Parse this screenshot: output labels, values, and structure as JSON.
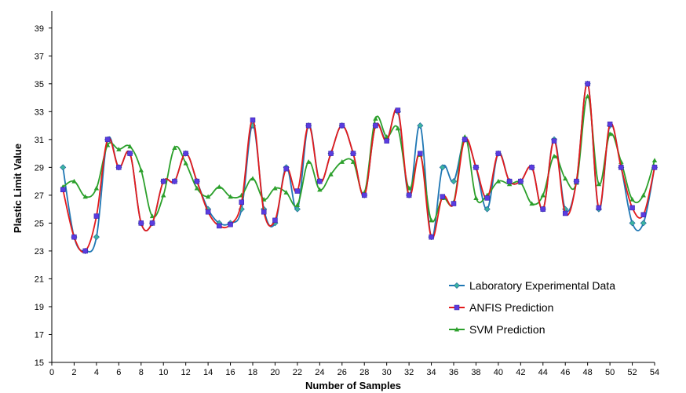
{
  "chart_data": {
    "type": "line",
    "xlabel": "Number of Samples",
    "ylabel": "Plastic Limit Value",
    "xlim": [
      0,
      54
    ],
    "ylim": [
      15,
      40
    ],
    "xticks": [
      0,
      2,
      4,
      6,
      8,
      10,
      12,
      14,
      16,
      18,
      20,
      22,
      24,
      26,
      28,
      30,
      32,
      34,
      36,
      38,
      40,
      42,
      44,
      46,
      48,
      50,
      52,
      54
    ],
    "yticks": [
      15,
      17,
      19,
      21,
      23,
      25,
      27,
      29,
      31,
      33,
      35,
      37,
      39
    ],
    "grid": false,
    "legend_position": "bottom-right",
    "x": [
      1,
      2,
      3,
      4,
      5,
      6,
      7,
      8,
      9,
      10,
      11,
      12,
      13,
      14,
      15,
      16,
      17,
      18,
      19,
      20,
      21,
      22,
      23,
      24,
      25,
      26,
      27,
      28,
      29,
      30,
      31,
      32,
      33,
      34,
      35,
      36,
      37,
      38,
      39,
      40,
      41,
      42,
      43,
      44,
      45,
      46,
      47,
      48,
      49,
      50,
      51,
      52,
      53,
      54
    ],
    "series": [
      {
        "name": "Laboratory Experimental Data",
        "color": "#1f77b4",
        "marker_color": "#3cb4a0",
        "marker": "diamond",
        "values": [
          29,
          24,
          23,
          24,
          31,
          29,
          30,
          25,
          25,
          28,
          28,
          30,
          28,
          26,
          25,
          25,
          26,
          32,
          26,
          25,
          29,
          26,
          32,
          28,
          30,
          32,
          30,
          27,
          32,
          31,
          33,
          27,
          32,
          24,
          29,
          28,
          31,
          29,
          26,
          30,
          28,
          28,
          29,
          26,
          31,
          26,
          28,
          35,
          26,
          32,
          29,
          25,
          25,
          29
        ]
      },
      {
        "name": "ANFIS Prediction",
        "color": "#e31a1c",
        "marker_color": "#5a3ce0",
        "marker": "square",
        "values": [
          27.4,
          24,
          23,
          25.5,
          31,
          29,
          30,
          25,
          25,
          28,
          28,
          30,
          28,
          25.8,
          24.8,
          24.9,
          26.5,
          32.4,
          25.8,
          25.2,
          28.9,
          27.3,
          32,
          28,
          30,
          32,
          30,
          27,
          32,
          30.9,
          33.1,
          27,
          30,
          24,
          26.9,
          26.4,
          31,
          29,
          26.8,
          30,
          28,
          28,
          29,
          26,
          30.9,
          25.7,
          28,
          35,
          26.1,
          32.1,
          29,
          26.1,
          25.6,
          29
        ]
      },
      {
        "name": "SVM Prediction",
        "color": "#2ca02c",
        "marker_color": "#2ca02c",
        "marker": "triangle",
        "values": [
          27.6,
          28,
          26.9,
          27.5,
          30.6,
          30.3,
          30.5,
          28.8,
          25.5,
          27,
          30.4,
          29.3,
          27.5,
          26.9,
          27.6,
          26.9,
          27,
          28.2,
          26.7,
          27.5,
          27.2,
          26.3,
          29.4,
          27.4,
          28.5,
          29.4,
          29.4,
          27.2,
          32.5,
          31.2,
          31.8,
          27.5,
          29.9,
          25.2,
          26.8,
          26.5,
          31.2,
          26.8,
          27,
          28,
          27.8,
          27.9,
          26.4,
          27,
          29.8,
          28.2,
          27.9,
          34.1,
          27.8,
          31.4,
          29.4,
          26.7,
          27,
          29.5
        ]
      }
    ]
  }
}
